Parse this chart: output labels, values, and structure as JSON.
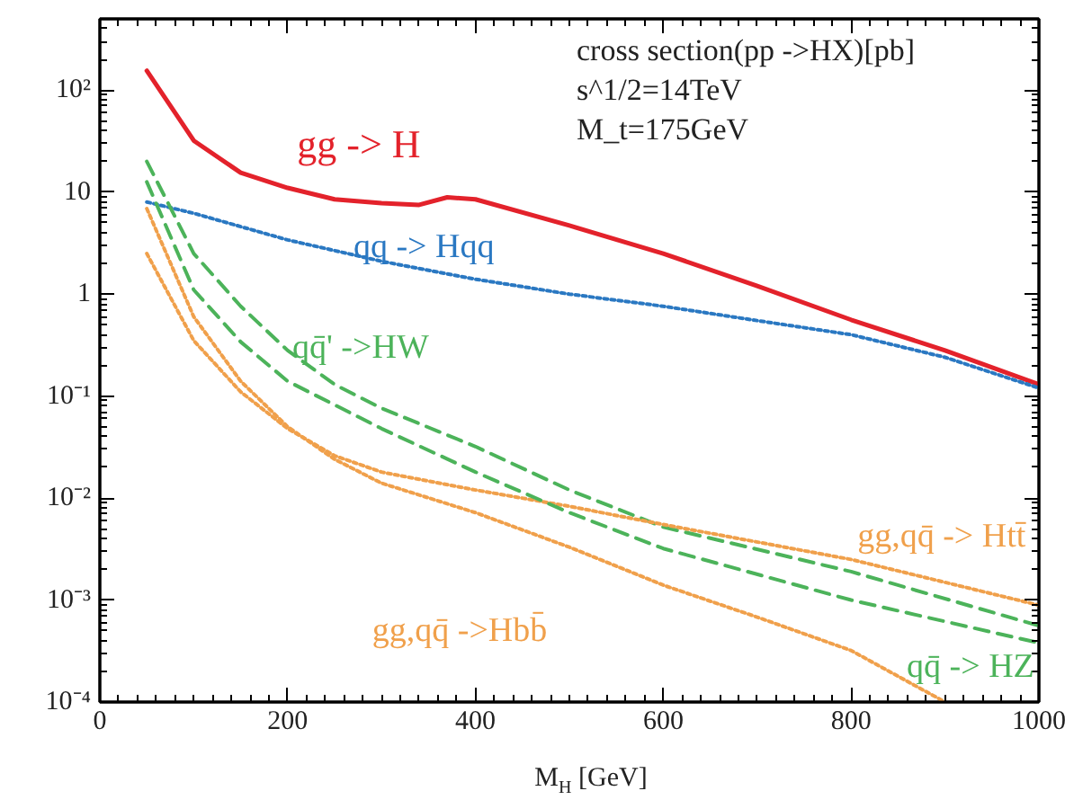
{
  "chart_data": {
    "type": "line",
    "log": "y",
    "xlabel": "M$_{H}$ [GeV]",
    "xlim": [
      0,
      1000
    ],
    "xticks": [
      0,
      200,
      400,
      600,
      800,
      1000
    ],
    "ylim": [
      0.0001,
      500
    ],
    "yticks": [
      {
        "value": 0.0001,
        "label": "10⁻⁴"
      },
      {
        "value": 0.001,
        "label": "10⁻³"
      },
      {
        "value": 0.01,
        "label": "10⁻²"
      },
      {
        "value": 0.1,
        "label": "10⁻¹"
      },
      1,
      10,
      {
        "value": 100,
        "label": "10²"
      }
    ],
    "annotations": [
      "cross section(pp ->HX)[pb]",
      "s^1/2=14TeV",
      "M_t=175GeV"
    ],
    "series": [
      {
        "name": "gg -> H",
        "color": "#e3222b",
        "line_style": "solid",
        "x": [
          50,
          100,
          150,
          200,
          250,
          300,
          340,
          370,
          400,
          500,
          600,
          700,
          800,
          900,
          1000
        ],
        "values": [
          155,
          32,
          15.5,
          11,
          8.5,
          7.8,
          7.5,
          8.9,
          8.5,
          4.7,
          2.5,
          1.2,
          0.56,
          0.28,
          0.13
        ]
      },
      {
        "name": "qq -> Hqq",
        "color": "#2a78c2",
        "line_style": "dotted",
        "x": [
          50,
          100,
          200,
          300,
          400,
          500,
          600,
          700,
          800,
          900,
          1000
        ],
        "values": [
          8,
          6.2,
          3.4,
          2.1,
          1.4,
          1.0,
          0.76,
          0.55,
          0.4,
          0.24,
          0.12
        ]
      },
      {
        "name": "qq̄' ->HW",
        "color": "#4cb35a",
        "line_style": "dashed",
        "x": [
          50,
          100,
          150,
          200,
          250,
          300,
          400,
          500,
          600,
          800,
          1000
        ],
        "values": [
          20,
          2.5,
          0.76,
          0.28,
          0.13,
          0.076,
          0.032,
          0.012,
          0.0052,
          0.0019,
          0.00056
        ]
      },
      {
        "name": "gg,qq̄  -> Htt̄",
        "color": "#f0a04b",
        "line_style": "dotted",
        "x": [
          50,
          100,
          150,
          200,
          250,
          300,
          400,
          500,
          600,
          800,
          1000
        ],
        "values": [
          2.5,
          0.35,
          0.11,
          0.048,
          0.026,
          0.018,
          0.012,
          0.0083,
          0.0055,
          0.0025,
          0.00089
        ]
      },
      {
        "name": "gg,qq̄ ->Hbb̄",
        "color": "#f0a04b",
        "line_style": "dotted",
        "x": [
          50,
          100,
          150,
          200,
          250,
          300,
          400,
          500,
          600,
          700,
          800,
          900
        ],
        "values": [
          6.9,
          0.6,
          0.14,
          0.05,
          0.024,
          0.014,
          0.0072,
          0.0033,
          0.0014,
          0.00068,
          0.00032,
          0.0001
        ]
      },
      {
        "name": "qq̄ -> HZ",
        "color": "#4cb35a",
        "line_style": "dashed",
        "x": [
          50,
          100,
          150,
          200,
          300,
          400,
          500,
          600,
          800,
          1000
        ],
        "values": [
          12.6,
          1.1,
          0.34,
          0.14,
          0.048,
          0.018,
          0.0072,
          0.0032,
          0.001,
          0.00038
        ]
      }
    ]
  }
}
